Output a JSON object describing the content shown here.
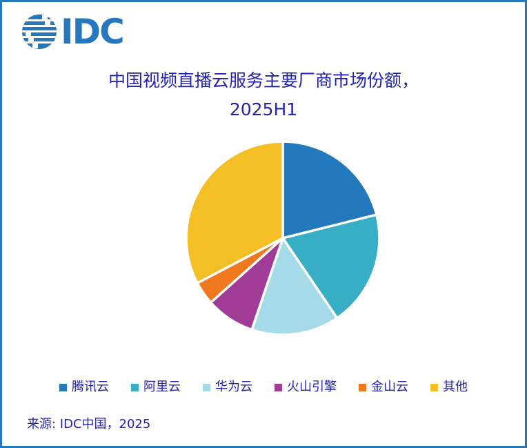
{
  "logo": {
    "text": "IDC"
  },
  "title": {
    "line1": "中国视频直播云服务主要厂商市场份额，",
    "line2": "2025H1"
  },
  "source": "来源: IDC中国，2025",
  "colors": {
    "frame_border": "#2577BE",
    "logo_blue": "#2578BE",
    "text_navy": "#2323B3",
    "slice_gap": "#FFFFFF"
  },
  "chart_data": {
    "type": "pie",
    "title": "中国视频直播云服务主要厂商市场份额，2025H1",
    "legend_position": "bottom",
    "start_angle_deg": 0,
    "direction": "clockwise",
    "unit": "percent market share",
    "slices": [
      {
        "label": "腾讯云",
        "value": 21.1,
        "color": "#2478BC"
      },
      {
        "label": "阿里云",
        "value": 19.4,
        "color": "#38AEC6"
      },
      {
        "label": "华为云",
        "value": 14.7,
        "color": "#A5DBE8"
      },
      {
        "label": "火山引擎",
        "value": 8.2,
        "color": "#A03C96"
      },
      {
        "label": "金山云",
        "value": 3.9,
        "color": "#F0781E"
      },
      {
        "label": "其他",
        "value": 32.7,
        "color": "#F3BF24"
      }
    ]
  }
}
